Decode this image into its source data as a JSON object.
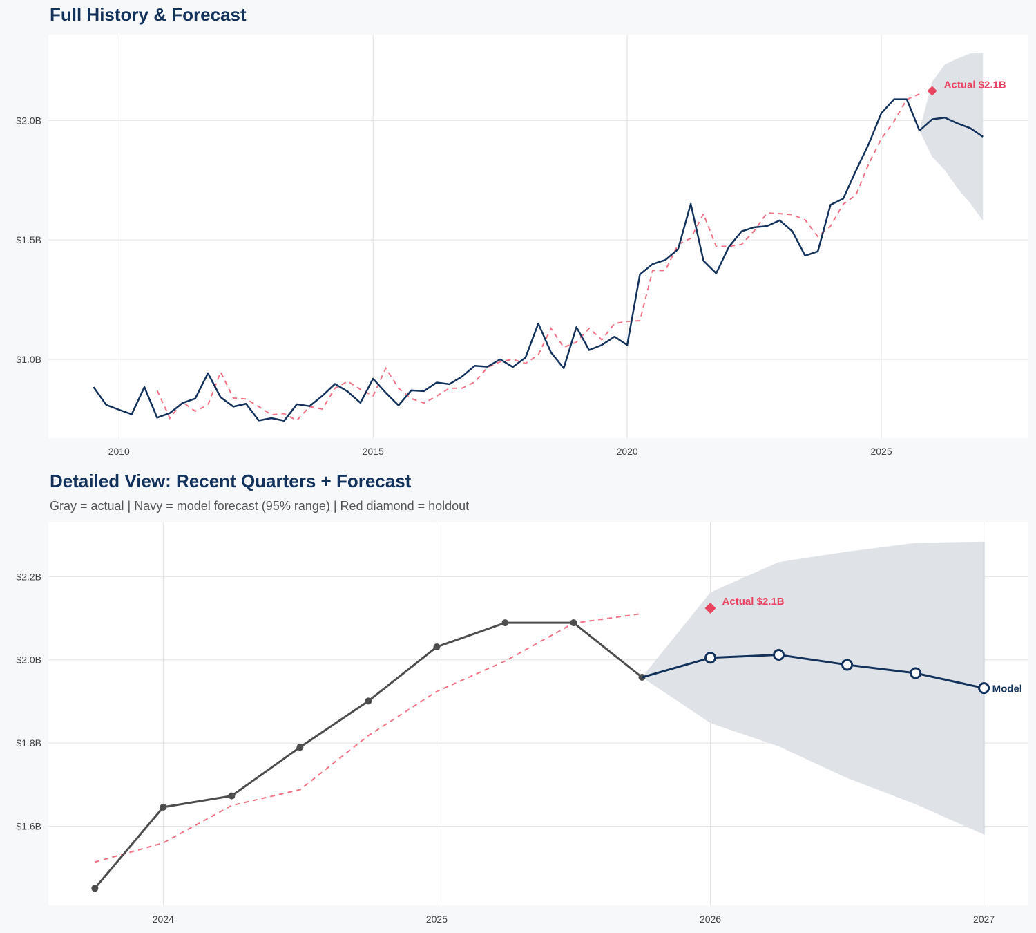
{
  "top": {
    "title": "Full History & Forecast"
  },
  "bottom": {
    "title": "Detailed View: Recent Quarters + Forecast",
    "subtitle": "Gray = actual  |  Navy = model forecast (95% range)  |  Red diamond = holdout"
  },
  "colors": {
    "navy": "#13325b",
    "actual_gray": "#4d4d4d",
    "fitted_red": "#f07386",
    "holdout_red": "#e8435f",
    "band": "#dde1e7",
    "grid": "#e2e2e2"
  },
  "chart_data": [
    {
      "type": "line",
      "title": "Full History & Forecast",
      "ylim": [
        0.67,
        2.36
      ],
      "grid": true,
      "x_ticks": [
        {
          "value": "2010-Q1",
          "label": "2010"
        },
        {
          "value": "2015-Q1",
          "label": "2015"
        },
        {
          "value": "2020-Q1",
          "label": "2020"
        },
        {
          "value": "2025-Q1",
          "label": "2025"
        }
      ],
      "y_ticks": [
        {
          "value": 1.0,
          "label": "$1.0B"
        },
        {
          "value": 1.5,
          "label": "$1.5B"
        },
        {
          "value": 2.0,
          "label": "$2.0B"
        }
      ],
      "actual": {
        "style": "solid-navy",
        "x": [
          "2009-Q3",
          "2009-Q4",
          "2010-Q1",
          "2010-Q2",
          "2010-Q3",
          "2010-Q4",
          "2011-Q1",
          "2011-Q2",
          "2011-Q3",
          "2011-Q4",
          "2012-Q1",
          "2012-Q2",
          "2012-Q3",
          "2012-Q4",
          "2013-Q1",
          "2013-Q2",
          "2013-Q3",
          "2013-Q4",
          "2014-Q1",
          "2014-Q2",
          "2014-Q3",
          "2014-Q4",
          "2015-Q1",
          "2015-Q2",
          "2015-Q3",
          "2015-Q4",
          "2016-Q1",
          "2016-Q2",
          "2016-Q3",
          "2016-Q4",
          "2017-Q1",
          "2017-Q2",
          "2017-Q3",
          "2017-Q4",
          "2018-Q1",
          "2018-Q2",
          "2018-Q3",
          "2018-Q4",
          "2019-Q1",
          "2019-Q2",
          "2019-Q3",
          "2019-Q4",
          "2020-Q1",
          "2020-Q2",
          "2020-Q3",
          "2020-Q4",
          "2021-Q1",
          "2021-Q2",
          "2021-Q3",
          "2021-Q4",
          "2022-Q1",
          "2022-Q2",
          "2022-Q3",
          "2022-Q4",
          "2023-Q1",
          "2023-Q2",
          "2023-Q3",
          "2023-Q4",
          "2024-Q1",
          "2024-Q2",
          "2024-Q3",
          "2024-Q4",
          "2025-Q1",
          "2025-Q2",
          "2025-Q3",
          "2025-Q4"
        ],
        "values": [
          0.884,
          0.809,
          0.789,
          0.77,
          0.884,
          0.756,
          0.775,
          0.817,
          0.836,
          0.942,
          0.841,
          0.802,
          0.814,
          0.744,
          0.754,
          0.743,
          0.812,
          0.804,
          0.847,
          0.897,
          0.865,
          0.818,
          0.919,
          0.86,
          0.807,
          0.87,
          0.867,
          0.903,
          0.896,
          0.928,
          0.973,
          0.969,
          1.0,
          0.968,
          1.008,
          1.15,
          1.029,
          0.963,
          1.135,
          1.039,
          1.06,
          1.095,
          1.06,
          1.356,
          1.399,
          1.416,
          1.461,
          1.651,
          1.413,
          1.36,
          1.471,
          1.536,
          1.553,
          1.558,
          1.582,
          1.536,
          1.434,
          1.452,
          1.647,
          1.673,
          1.79,
          1.901,
          2.031,
          2.089,
          2.089,
          1.958
        ]
      },
      "fitted": {
        "style": "dashed-red",
        "x": [
          "2010-Q4",
          "2011-Q1",
          "2011-Q2",
          "2011-Q3",
          "2011-Q4",
          "2012-Q1",
          "2012-Q2",
          "2012-Q3",
          "2012-Q4",
          "2013-Q1",
          "2013-Q2",
          "2013-Q3",
          "2013-Q4",
          "2014-Q1",
          "2014-Q2",
          "2014-Q3",
          "2014-Q4",
          "2015-Q1",
          "2015-Q2",
          "2015-Q3",
          "2015-Q4",
          "2016-Q1",
          "2016-Q2",
          "2016-Q3",
          "2016-Q4",
          "2017-Q1",
          "2017-Q2",
          "2017-Q3",
          "2017-Q4",
          "2018-Q1",
          "2018-Q2",
          "2018-Q3",
          "2018-Q4",
          "2019-Q1",
          "2019-Q2",
          "2019-Q3",
          "2019-Q4",
          "2020-Q1",
          "2020-Q2",
          "2020-Q3",
          "2020-Q4",
          "2021-Q1",
          "2021-Q2",
          "2021-Q3",
          "2021-Q4",
          "2022-Q1",
          "2022-Q2",
          "2022-Q3",
          "2022-Q4",
          "2023-Q1",
          "2023-Q2",
          "2023-Q3",
          "2023-Q4",
          "2024-Q1",
          "2024-Q2",
          "2024-Q3",
          "2024-Q4",
          "2025-Q1",
          "2025-Q2",
          "2025-Q3",
          "2025-Q4"
        ],
        "values": [
          0.87,
          0.754,
          0.821,
          0.783,
          0.809,
          0.947,
          0.838,
          0.834,
          0.802,
          0.768,
          0.773,
          0.744,
          0.802,
          0.792,
          0.879,
          0.908,
          0.874,
          0.847,
          0.963,
          0.879,
          0.836,
          0.817,
          0.846,
          0.879,
          0.879,
          0.905,
          0.966,
          0.99,
          1.0,
          0.983,
          1.019,
          1.13,
          1.05,
          1.072,
          1.13,
          1.082,
          1.15,
          1.159,
          1.162,
          1.372,
          1.372,
          1.481,
          1.507,
          1.609,
          1.473,
          1.473,
          1.481,
          1.539,
          1.613,
          1.61,
          1.606,
          1.584,
          1.514,
          1.558,
          1.65,
          1.688,
          1.818,
          1.924,
          1.997,
          2.088,
          2.111
        ]
      },
      "forecast": {
        "x": [
          "2025-Q4",
          "2026-Q1",
          "2026-Q2",
          "2026-Q3",
          "2026-Q4",
          "2027-Q1"
        ],
        "mean": [
          1.958,
          2.005,
          2.012,
          1.988,
          1.968,
          1.932
        ],
        "lower": [
          1.958,
          1.848,
          1.792,
          1.716,
          1.653,
          1.58
        ],
        "upper": [
          1.958,
          2.162,
          2.235,
          2.26,
          2.281,
          2.284
        ]
      },
      "holdout": {
        "x": "2026-Q1",
        "value": 2.124,
        "label": "Actual $2.1B"
      }
    },
    {
      "type": "line",
      "title": "Detailed View: Recent Quarters + Forecast",
      "ylim": [
        1.41,
        2.33
      ],
      "grid": true,
      "x_ticks": [
        {
          "value": "2024-Q1",
          "label": "2024"
        },
        {
          "value": "2025-Q1",
          "label": "2025"
        },
        {
          "value": "2026-Q1",
          "label": "2026"
        },
        {
          "value": "2027-Q1",
          "label": "2027"
        }
      ],
      "y_ticks": [
        {
          "value": 1.6,
          "label": "$1.6B"
        },
        {
          "value": 1.8,
          "label": "$1.8B"
        },
        {
          "value": 2.0,
          "label": "$2.0B"
        },
        {
          "value": 2.2,
          "label": "$2.2B"
        }
      ],
      "actual": {
        "style": "solid-gray-markers",
        "x": [
          "2023-Q4",
          "2024-Q1",
          "2024-Q2",
          "2024-Q3",
          "2024-Q4",
          "2025-Q1",
          "2025-Q2",
          "2025-Q3",
          "2025-Q4"
        ],
        "values": [
          1.451,
          1.646,
          1.673,
          1.79,
          1.901,
          2.031,
          2.089,
          2.089,
          1.958
        ]
      },
      "fitted": {
        "style": "dashed-red",
        "x": [
          "2023-Q4",
          "2024-Q1",
          "2024-Q2",
          "2024-Q3",
          "2024-Q4",
          "2025-Q1",
          "2025-Q2",
          "2025-Q3",
          "2025-Q4"
        ],
        "values": [
          1.514,
          1.56,
          1.65,
          1.688,
          1.818,
          1.924,
          1.997,
          2.088,
          2.111
        ]
      },
      "forecast": {
        "x": [
          "2025-Q4",
          "2026-Q1",
          "2026-Q2",
          "2026-Q3",
          "2026-Q4",
          "2027-Q1"
        ],
        "mean": [
          1.958,
          2.005,
          2.012,
          1.988,
          1.968,
          1.932
        ],
        "lower": [
          1.958,
          1.848,
          1.792,
          1.716,
          1.653,
          1.58
        ],
        "upper": [
          1.958,
          2.162,
          2.235,
          2.26,
          2.281,
          2.284
        ],
        "label": "Model"
      },
      "holdout": {
        "x": "2026-Q1",
        "value": 2.124,
        "label": "Actual $2.1B"
      }
    }
  ]
}
